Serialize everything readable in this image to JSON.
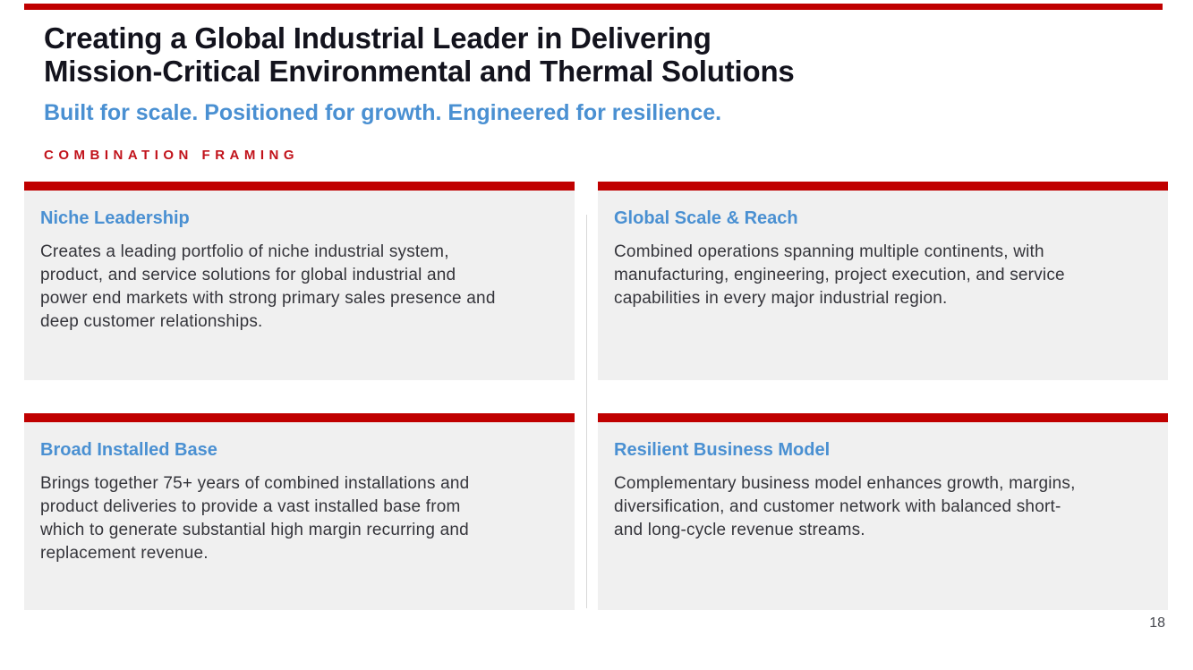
{
  "colors": {
    "accent_red": "#c00000",
    "eyebrow_red": "#c1121a",
    "heading_blue": "#4a90d2",
    "title_dark": "#13131d",
    "body_text": "#35353b",
    "card_background": "#f0f0f0"
  },
  "header": {
    "title_lines": [
      "Creating a Global Industrial Leader in Delivering",
      "Mission-Critical Environmental and Thermal Solutions"
    ],
    "subtitle": "Built for scale. Positioned for growth. Engineered for resilience.",
    "eyebrow": "COMBINATION FRAMING"
  },
  "cards": [
    {
      "title": "Niche Leadership",
      "body_lines": [
        "Creates a leading portfolio of niche industrial system,",
        "product, and service solutions for global industrial and",
        "power end markets with strong primary sales presence and",
        "deep customer relationships."
      ]
    },
    {
      "title": "Global Scale & Reach",
      "body_lines": [
        "Combined operations spanning multiple continents, with",
        "manufacturing, engineering, project execution, and service",
        "capabilities in every major industrial region."
      ]
    },
    {
      "title": "Broad Installed Base",
      "body_lines": [
        "Brings together 75+ years of combined installations and",
        "product deliveries to provide a vast installed base from",
        "which to generate substantial high margin recurring and",
        "replacement revenue."
      ]
    },
    {
      "title": "Resilient Business Model",
      "body_lines": [
        "Complementary business model enhances growth, margins,",
        "diversification, and customer network with balanced short-",
        "and long-cycle revenue streams."
      ]
    }
  ],
  "footer": {
    "page_number": "18"
  }
}
